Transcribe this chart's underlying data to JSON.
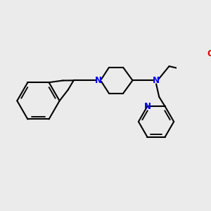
{
  "bg_color": "#ebebeb",
  "bond_color": "#000000",
  "N_color": "#0000ee",
  "O_color": "#dd0000",
  "lw": 1.5,
  "figsize": [
    3.0,
    3.0
  ],
  "dpi": 100,
  "xlim": [
    0,
    300
  ],
  "ylim": [
    0,
    300
  ]
}
